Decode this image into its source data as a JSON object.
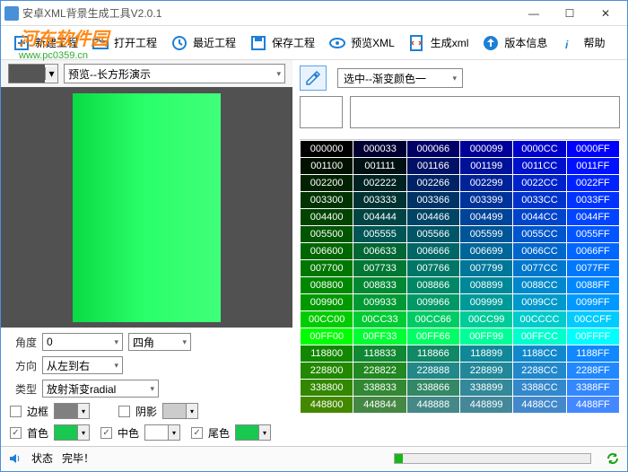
{
  "window": {
    "title": "安卓XML背景生成工具V2.0.1"
  },
  "watermark": {
    "line1": "河东软件园",
    "line2": "www.pc0359.cn"
  },
  "toolbar": {
    "new": "新建工程",
    "open": "打开工程",
    "recent": "最近工程",
    "save": "保存工程",
    "preview": "预览XML",
    "generate": "生成xml",
    "version": "版本信息",
    "help": "帮助"
  },
  "left": {
    "preview_select": "预览--长方形演示",
    "angle_label": "角度",
    "angle_value": "0",
    "corner_value": "四角",
    "direction_label": "方向",
    "direction_value": "从左到右",
    "type_label": "类型",
    "type_value": "放射渐变radial",
    "border_label": "边框",
    "shadow_label": "阴影",
    "start_label": "首色",
    "mid_label": "中色",
    "end_label": "尾色",
    "start_color": "#19c850",
    "mid_color": "#ffffff",
    "end_color": "#19c850",
    "border_color": "#808080",
    "shadow_color": "#cccccc",
    "gradient_from": "#0adb44",
    "gradient_to": "#40ff7a",
    "canvas_bg": "#515151"
  },
  "right": {
    "select_label": "选中--渐变颜色一"
  },
  "status": {
    "label": "状态",
    "text": "完毕！",
    "progress_pct": 4
  },
  "grid": {
    "rows": [
      [
        "000000",
        "000033",
        "000066",
        "000099",
        "0000CC",
        "0000FF"
      ],
      [
        "001100",
        "001111",
        "001166",
        "001199",
        "0011CC",
        "0011FF"
      ],
      [
        "002200",
        "002222",
        "002266",
        "002299",
        "0022CC",
        "0022FF"
      ],
      [
        "003300",
        "003333",
        "003366",
        "003399",
        "0033CC",
        "0033FF"
      ],
      [
        "004400",
        "004444",
        "004466",
        "004499",
        "0044CC",
        "0044FF"
      ],
      [
        "005500",
        "005555",
        "005566",
        "005599",
        "0055CC",
        "0055FF"
      ],
      [
        "006600",
        "006633",
        "006666",
        "006699",
        "0066CC",
        "0066FF"
      ],
      [
        "007700",
        "007733",
        "007766",
        "007799",
        "0077CC",
        "0077FF"
      ],
      [
        "008800",
        "008833",
        "008866",
        "008899",
        "0088CC",
        "0088FF"
      ],
      [
        "009900",
        "009933",
        "009966",
        "009999",
        "0099CC",
        "0099FF"
      ],
      [
        "00CC00",
        "00CC33",
        "00CC66",
        "00CC99",
        "00CCCC",
        "00CCFF"
      ],
      [
        "00FF00",
        "00FF33",
        "00FF66",
        "00FF99",
        "00FFCC",
        "00FFFF"
      ],
      [
        "118800",
        "118833",
        "118866",
        "118899",
        "1188CC",
        "1188FF"
      ],
      [
        "228800",
        "228822",
        "228888",
        "228899",
        "2288CC",
        "2288FF"
      ],
      [
        "338800",
        "338833",
        "338866",
        "338899",
        "3388CC",
        "3388FF"
      ],
      [
        "448800",
        "448844",
        "448888",
        "448899",
        "4488CC",
        "4488FF"
      ]
    ]
  }
}
